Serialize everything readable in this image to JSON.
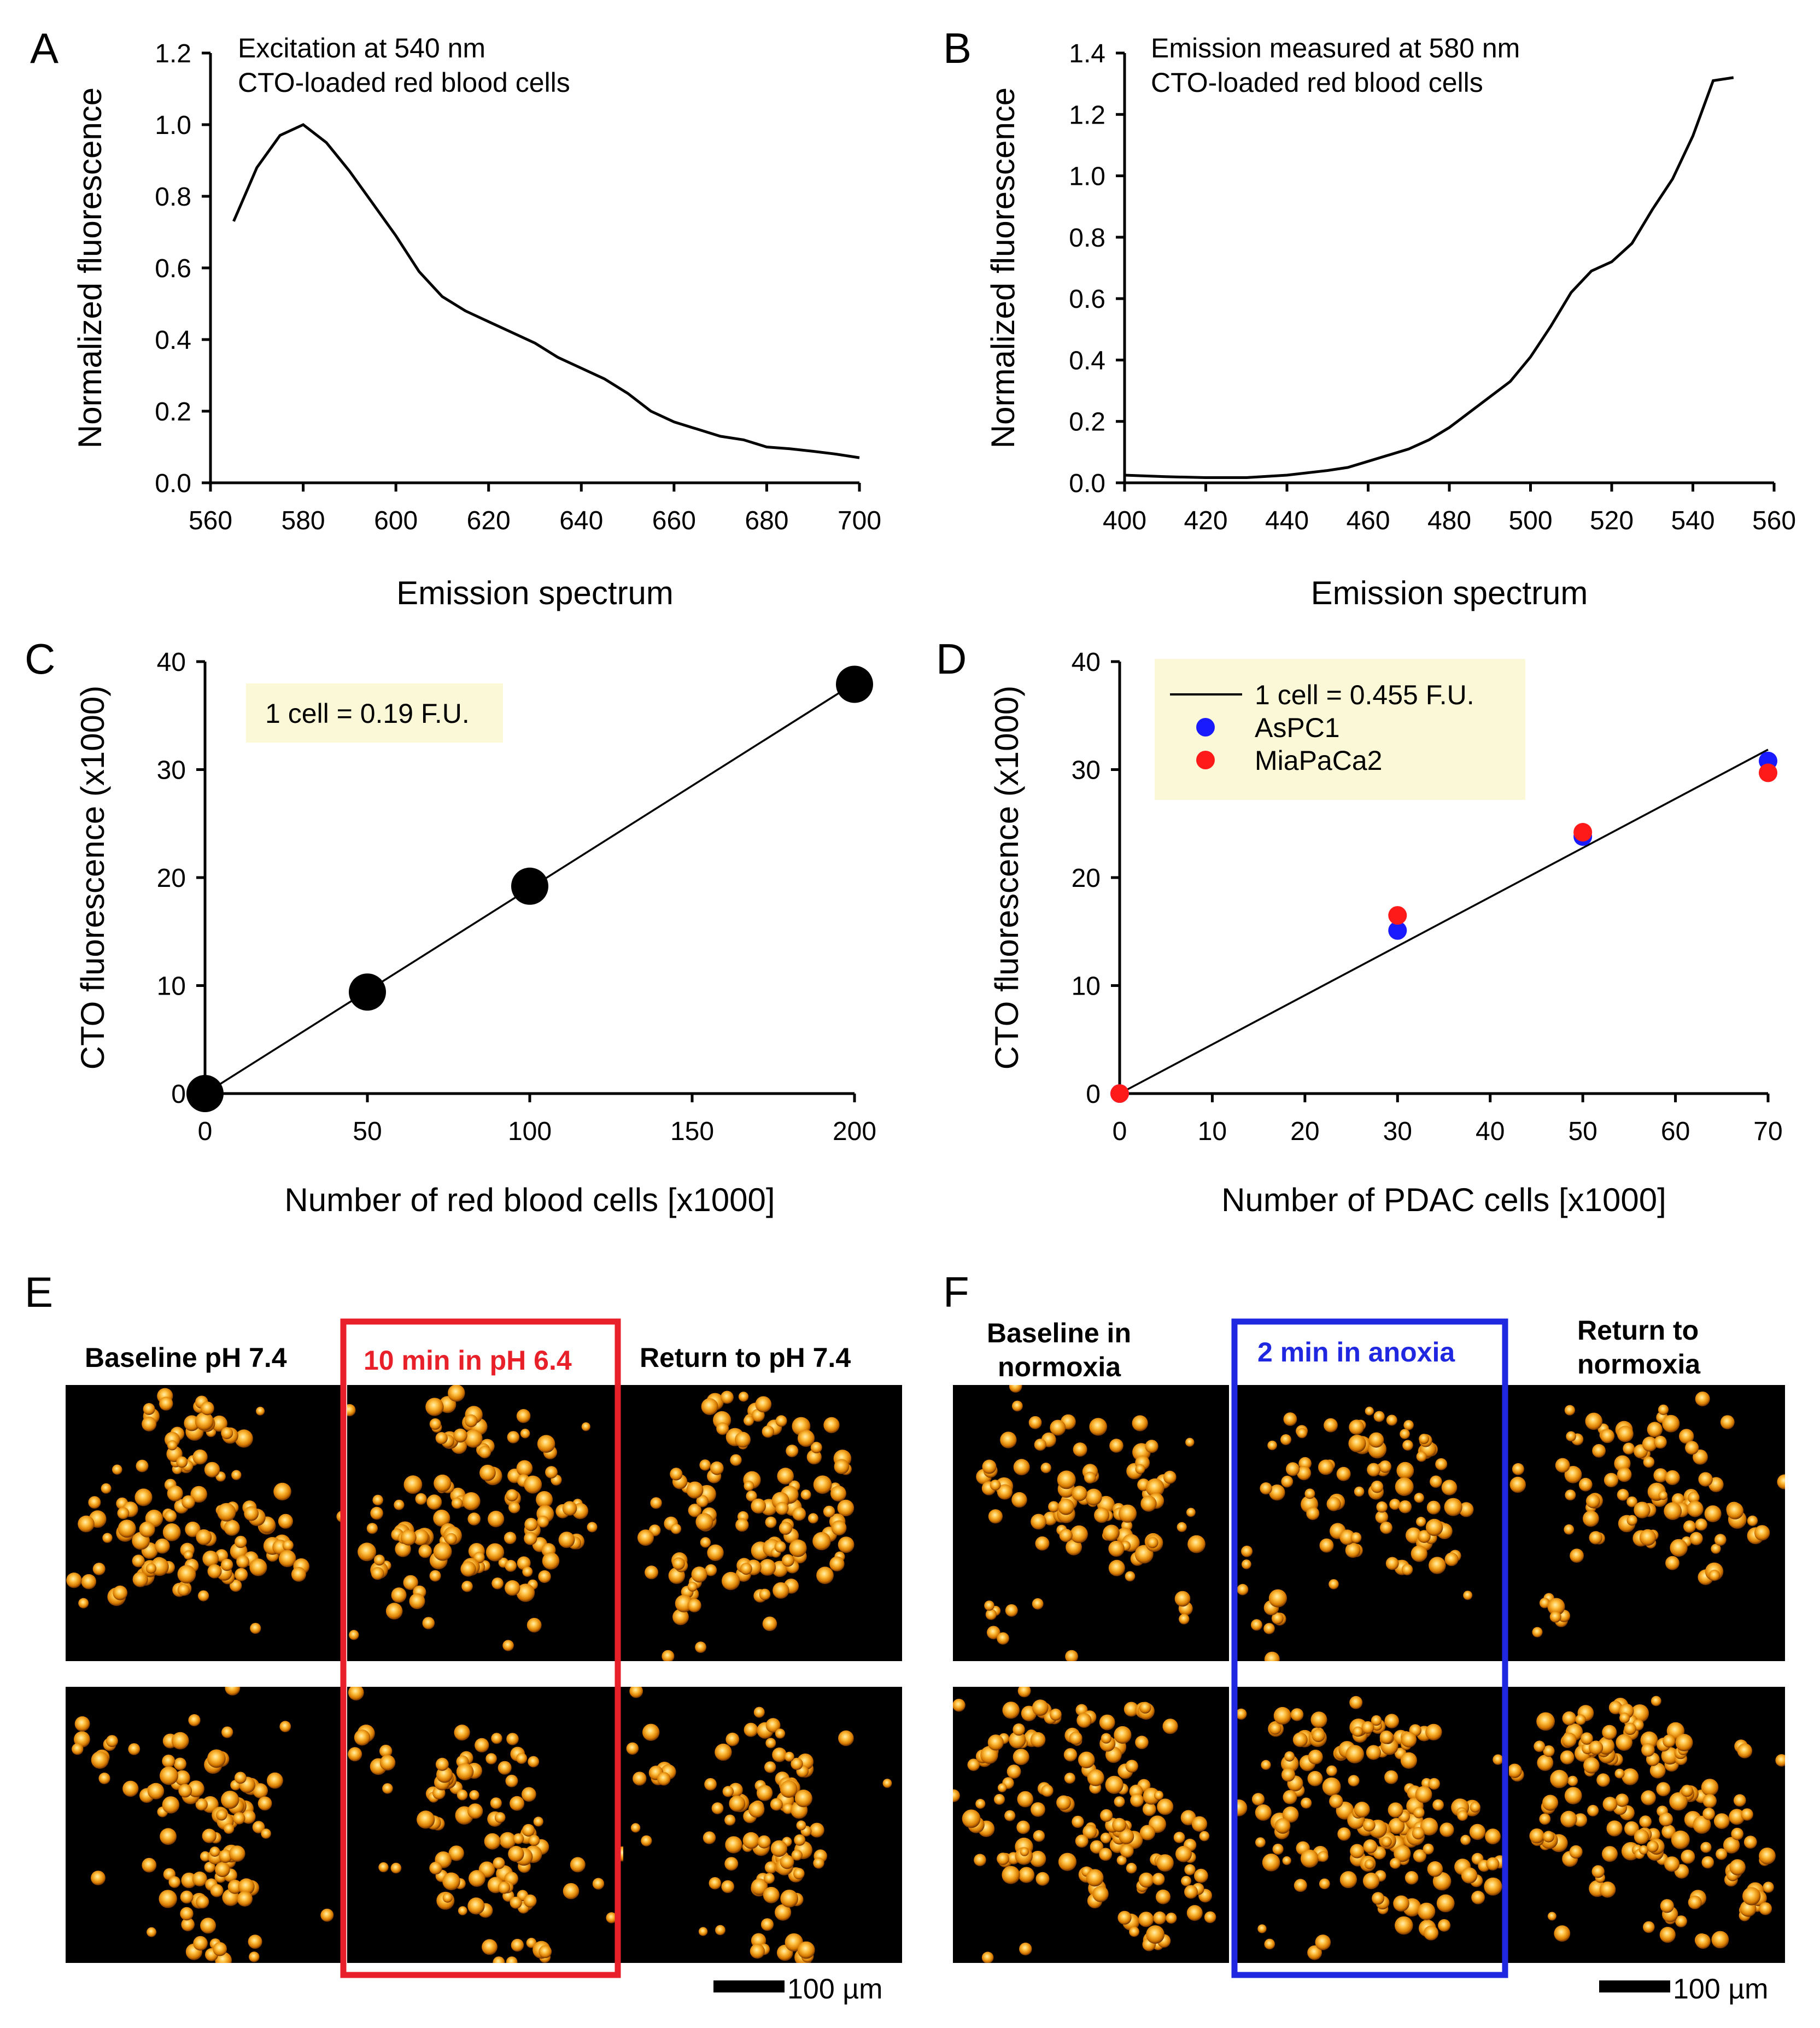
{
  "chart_data": [
    {
      "panel": "A",
      "type": "line",
      "annotations": [
        "Excitation at 540 nm",
        "CTO-loaded red blood cells"
      ],
      "xlabel": "Emission spectrum",
      "ylabel": "Normalized fluorescence",
      "xlim": [
        560,
        700
      ],
      "ylim": [
        0,
        1.2
      ],
      "xticks": [
        560,
        580,
        600,
        620,
        640,
        660,
        680,
        700
      ],
      "yticks": [
        0.0,
        0.2,
        0.4,
        0.6,
        0.8,
        1.0,
        1.2
      ],
      "ytick_labels": [
        "0.0",
        "0.2",
        "0.4",
        "0.6",
        "0.8",
        "1.0",
        "1.2"
      ],
      "series": [
        {
          "name": "CTO-loaded red blood cells",
          "x": [
            565,
            570,
            575,
            580,
            585,
            590,
            595,
            600,
            605,
            610,
            615,
            620,
            625,
            630,
            635,
            640,
            645,
            650,
            655,
            660,
            665,
            670,
            675,
            680,
            685,
            690,
            695,
            700
          ],
          "y": [
            0.73,
            0.88,
            0.97,
            1.0,
            0.95,
            0.87,
            0.78,
            0.69,
            0.59,
            0.52,
            0.48,
            0.45,
            0.42,
            0.39,
            0.35,
            0.32,
            0.29,
            0.25,
            0.2,
            0.17,
            0.15,
            0.13,
            0.12,
            0.1,
            0.095,
            0.088,
            0.08,
            0.07
          ]
        }
      ]
    },
    {
      "panel": "B",
      "type": "line",
      "annotations": [
        "Emission measured at 580 nm",
        "CTO-loaded red blood cells"
      ],
      "xlabel": "Emission spectrum",
      "ylabel": "Normalized fluorescence",
      "xlim": [
        400,
        560
      ],
      "ylim": [
        0,
        1.4
      ],
      "xticks": [
        400,
        420,
        440,
        460,
        480,
        500,
        520,
        540,
        560
      ],
      "yticks": [
        0.0,
        0.2,
        0.4,
        0.6,
        0.8,
        1.0,
        1.2,
        1.4
      ],
      "ytick_labels": [
        "0.0",
        "0.2",
        "0.4",
        "0.6",
        "0.8",
        "1.0",
        "1.2",
        "1.4"
      ],
      "series": [
        {
          "name": "CTO-loaded red blood cells",
          "x": [
            400,
            410,
            420,
            430,
            440,
            450,
            455,
            460,
            470,
            475,
            480,
            485,
            490,
            495,
            500,
            505,
            510,
            515,
            520,
            525,
            530,
            535,
            540,
            545,
            550
          ],
          "y": [
            0.025,
            0.02,
            0.017,
            0.017,
            0.025,
            0.04,
            0.05,
            0.07,
            0.11,
            0.14,
            0.18,
            0.23,
            0.28,
            0.33,
            0.41,
            0.51,
            0.62,
            0.69,
            0.72,
            0.78,
            0.89,
            0.99,
            1.13,
            1.31,
            1.32
          ]
        }
      ]
    },
    {
      "panel": "C",
      "type": "scatter",
      "xlabel": "Number of red blood cells [x1000]",
      "ylabel": "CTO fluorescence (x1000)",
      "xlim": [
        0,
        200
      ],
      "ylim": [
        0,
        40
      ],
      "xticks": [
        0,
        50,
        100,
        150,
        200
      ],
      "yticks": [
        0,
        10,
        20,
        30,
        40
      ],
      "legend": [
        "1 cell = 0.19 F.U."
      ],
      "series": [
        {
          "name": "red blood cells",
          "x": [
            0,
            50,
            100,
            200
          ],
          "y": [
            0,
            9.4,
            19.2,
            37.9
          ]
        }
      ],
      "fit": {
        "slope": 0.19,
        "x_range": [
          0,
          200
        ]
      }
    },
    {
      "panel": "D",
      "type": "scatter",
      "xlabel": "Number of PDAC cells [x1000]",
      "ylabel": "CTO fluorescence (x1000)",
      "xlim": [
        0,
        70
      ],
      "ylim": [
        0,
        40
      ],
      "xticks": [
        0,
        10,
        20,
        30,
        40,
        50,
        60,
        70
      ],
      "yticks": [
        0,
        10,
        20,
        30,
        40
      ],
      "legend": [
        "1 cell = 0.455 F.U.",
        "AsPC1",
        "MiaPaCa2"
      ],
      "series": [
        {
          "name": "AsPC1",
          "color": "#1a1aff",
          "x": [
            0,
            30,
            50,
            70
          ],
          "y": [
            0,
            15.1,
            23.8,
            30.8
          ]
        },
        {
          "name": "MiaPaCa2",
          "color": "#ff1a1a",
          "x": [
            0,
            30,
            50,
            70
          ],
          "y": [
            0,
            16.5,
            24.2,
            29.7
          ]
        }
      ],
      "fit": {
        "slope": 0.455,
        "x_range": [
          0,
          70
        ]
      }
    }
  ],
  "panels": {
    "A": "A",
    "B": "B",
    "C": "C",
    "D": "D",
    "E": "E",
    "F": "F"
  },
  "images": {
    "E": {
      "headers": [
        "Baseline pH 7.4",
        "10 min in pH  6.4",
        "Return to pH 7.4"
      ],
      "highlight_color": "#e8202a",
      "scale_bar": "100 µm"
    },
    "F": {
      "headers": [
        "Baseline in",
        "normoxia",
        "2 min in anoxia",
        "Return to",
        "normoxia"
      ],
      "highlight_color": "#1f28e0",
      "scale_bar": "100 µm"
    }
  },
  "colors": {
    "legend_bg": "#fbf8d8",
    "cell_core": "#ffd27a",
    "cell_edge": "#c46a00",
    "image_bg": "#000000"
  }
}
